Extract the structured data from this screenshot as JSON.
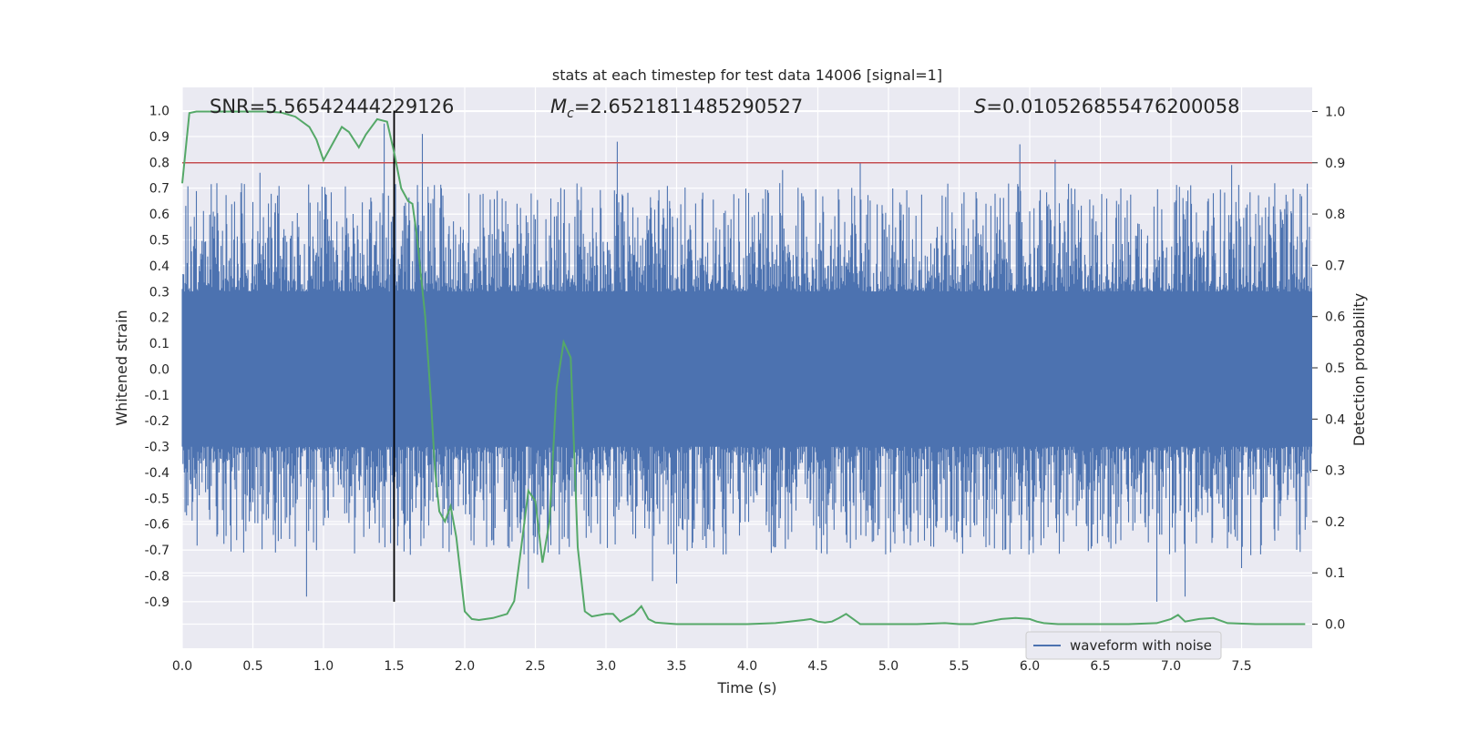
{
  "chart_data": {
    "type": "line",
    "title": "stats at each timestep for test data 14006 [signal=1]",
    "xlabel": "Time (s)",
    "ylabel": "Whitened strain",
    "y2label": "Detection probability",
    "xlim": [
      0.0,
      8.0
    ],
    "ylim": [
      -1.08,
      1.09
    ],
    "y2lim": [
      -0.047,
      1.047
    ],
    "x_ticks": [
      "0.0",
      "0.5",
      "1.0",
      "1.5",
      "2.0",
      "2.5",
      "3.0",
      "3.5",
      "4.0",
      "4.5",
      "5.0",
      "5.5",
      "6.0",
      "6.5",
      "7.0",
      "7.5"
    ],
    "y_ticks": [
      "1.0",
      "0.9",
      "0.8",
      "0.7",
      "0.6",
      "0.5",
      "0.4",
      "0.3",
      "0.2",
      "0.1",
      "0.0",
      "-0.1",
      "-0.2",
      "-0.3",
      "-0.4",
      "-0.5",
      "-0.6",
      "-0.7",
      "-0.8",
      "-0.9"
    ],
    "y2_ticks": [
      "1.0",
      "0.9",
      "0.8",
      "0.7",
      "0.6",
      "0.5",
      "0.4",
      "0.3",
      "0.2",
      "0.1",
      "0.0"
    ],
    "annotations": {
      "snr": "SNR=5.56542444229126",
      "mc_symbol": "M",
      "mc_sub": "c",
      "mc_value": "=2.6521811485290527",
      "s_symbol": "S",
      "s_value": "=0.010526855476200058"
    },
    "threshold": {
      "y2": 0.9,
      "color": "#c44e52"
    },
    "vline_time": 1.5,
    "grid": true,
    "background": "#eaeaf2",
    "legend": {
      "position": "bottom-right",
      "entries": [
        "waveform with noise"
      ]
    },
    "series": [
      {
        "name": "waveform with noise",
        "color": "#4c72b0",
        "axis": "left",
        "description": "dense noisy whitened strain, core ±0.3, peaks",
        "core_amplitude": 0.3,
        "peaks": [
          {
            "x": 0.55,
            "y": 0.76
          },
          {
            "x": 0.88,
            "y": -0.88
          },
          {
            "x": 1.43,
            "y": 0.95
          },
          {
            "x": 1.7,
            "y": 0.91
          },
          {
            "x": 2.45,
            "y": -0.85
          },
          {
            "x": 3.08,
            "y": 0.88
          },
          {
            "x": 3.33,
            "y": -0.82
          },
          {
            "x": 3.5,
            "y": -0.83
          },
          {
            "x": 4.25,
            "y": 0.77
          },
          {
            "x": 4.8,
            "y": 0.8
          },
          {
            "x": 5.93,
            "y": 0.87
          },
          {
            "x": 6.18,
            "y": 0.81
          },
          {
            "x": 6.9,
            "y": -0.9
          },
          {
            "x": 7.1,
            "y": -0.88
          },
          {
            "x": 7.43,
            "y": 0.79
          },
          {
            "x": 7.5,
            "y": -0.77
          }
        ]
      },
      {
        "name": "",
        "color": "#55a868",
        "axis": "right",
        "x": [
          0.0,
          0.05,
          0.1,
          0.2,
          0.3,
          0.4,
          0.5,
          0.6,
          0.7,
          0.8,
          0.9,
          0.95,
          1.0,
          1.05,
          1.13,
          1.18,
          1.25,
          1.3,
          1.38,
          1.45,
          1.5,
          1.55,
          1.6,
          1.63,
          1.66,
          1.72,
          1.76,
          1.79,
          1.82,
          1.86,
          1.9,
          1.94,
          2.0,
          2.05,
          2.1,
          2.2,
          2.3,
          2.35,
          2.4,
          2.45,
          2.5,
          2.55,
          2.6,
          2.65,
          2.7,
          2.75,
          2.8,
          2.85,
          2.9,
          3.0,
          3.05,
          3.1,
          3.2,
          3.25,
          3.3,
          3.35,
          3.4,
          3.5,
          3.6,
          3.8,
          4.0,
          4.2,
          4.3,
          4.4,
          4.45,
          4.5,
          4.55,
          4.6,
          4.65,
          4.7,
          4.75,
          4.8,
          4.9,
          5.0,
          5.2,
          5.4,
          5.5,
          5.6,
          5.7,
          5.8,
          5.9,
          6.0,
          6.05,
          6.1,
          6.2,
          6.3,
          6.5,
          6.7,
          6.9,
          7.0,
          7.05,
          7.1,
          7.2,
          7.3,
          7.4,
          7.6,
          7.8,
          7.95
        ],
        "values": [
          0.86,
          0.997,
          1.0,
          1.0,
          1.0,
          1.0,
          1.0,
          1.0,
          0.998,
          0.99,
          0.97,
          0.945,
          0.905,
          0.93,
          0.97,
          0.96,
          0.93,
          0.955,
          0.985,
          0.98,
          0.92,
          0.85,
          0.825,
          0.82,
          0.76,
          0.6,
          0.44,
          0.3,
          0.22,
          0.2,
          0.23,
          0.17,
          0.025,
          0.01,
          0.008,
          0.012,
          0.02,
          0.045,
          0.15,
          0.26,
          0.24,
          0.12,
          0.2,
          0.46,
          0.55,
          0.52,
          0.15,
          0.025,
          0.015,
          0.02,
          0.02,
          0.005,
          0.02,
          0.035,
          0.01,
          0.003,
          0.002,
          0.0,
          0.0,
          0.0,
          0.0,
          0.002,
          0.005,
          0.008,
          0.01,
          0.005,
          0.003,
          0.005,
          0.012,
          0.02,
          0.01,
          0.0,
          0.0,
          0.0,
          0.0,
          0.002,
          0.0,
          0.0,
          0.005,
          0.01,
          0.012,
          0.01,
          0.005,
          0.002,
          0.0,
          0.0,
          0.0,
          0.0,
          0.002,
          0.01,
          0.018,
          0.005,
          0.01,
          0.012,
          0.002,
          0.0,
          0.0,
          0.0
        ]
      }
    ]
  }
}
